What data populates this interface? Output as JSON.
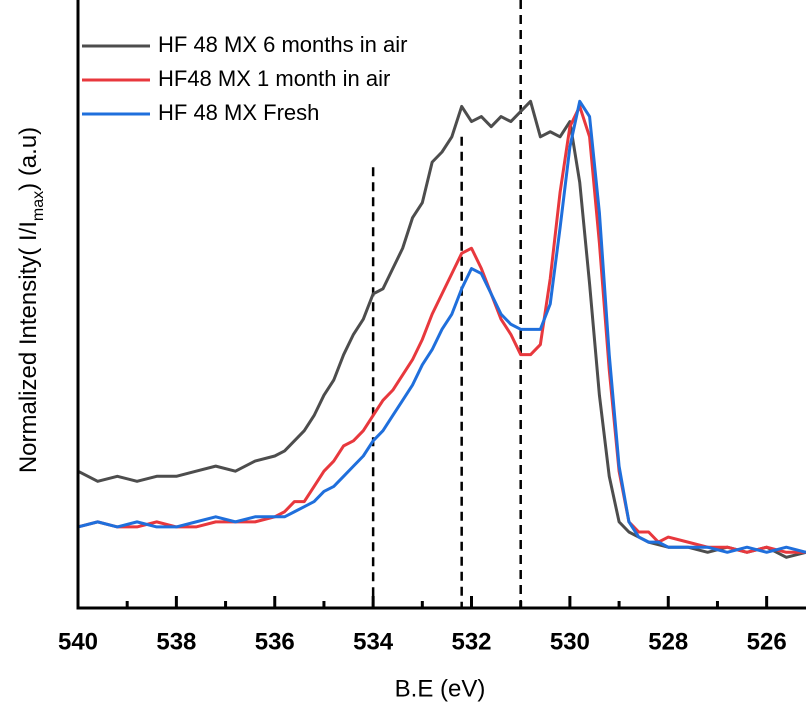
{
  "chart_data": {
    "type": "line",
    "xlabel": "B.E (eV)",
    "ylabel": [
      "Normalized Intensity( I/I",
      "max",
      ") (a.u)"
    ],
    "xlim": [
      540,
      525.2
    ],
    "ylim": [
      0,
      1.2
    ],
    "xticks": [
      540,
      538,
      536,
      534,
      532,
      530,
      528,
      526
    ],
    "xminorticks": [
      539,
      537,
      535,
      533,
      531,
      529,
      527
    ],
    "legend": "upper left",
    "reference_lines": [
      {
        "x": 534,
        "top": 0.87
      },
      {
        "x": 532.2,
        "top": 0.93
      },
      {
        "x": 531,
        "top": 1.2
      }
    ],
    "x": [
      540,
      539.6,
      539.2,
      538.8,
      538.4,
      538,
      537.6,
      537.2,
      536.8,
      536.4,
      536,
      535.8,
      535.6,
      535.4,
      535.2,
      535,
      534.8,
      534.6,
      534.4,
      534.2,
      534,
      533.8,
      533.6,
      533.4,
      533.2,
      533,
      532.8,
      532.6,
      532.4,
      532.2,
      532,
      531.8,
      531.6,
      531.4,
      531.2,
      531,
      530.8,
      530.6,
      530.4,
      530.2,
      530,
      529.8,
      529.6,
      529.4,
      529.2,
      529,
      528.8,
      528.6,
      528.4,
      528.2,
      528,
      527.6,
      527.2,
      526.8,
      526.4,
      526,
      525.6,
      525.2
    ],
    "series": [
      {
        "name": "HF 48 MX 6 months in air",
        "color": "#4d4d4d",
        "values": [
          0.27,
          0.25,
          0.26,
          0.25,
          0.26,
          0.26,
          0.27,
          0.28,
          0.27,
          0.29,
          0.3,
          0.31,
          0.33,
          0.35,
          0.38,
          0.42,
          0.45,
          0.5,
          0.54,
          0.57,
          0.62,
          0.63,
          0.67,
          0.71,
          0.77,
          0.8,
          0.88,
          0.9,
          0.93,
          0.99,
          0.96,
          0.97,
          0.95,
          0.97,
          0.96,
          0.98,
          1.0,
          0.93,
          0.94,
          0.93,
          0.96,
          0.84,
          0.64,
          0.42,
          0.26,
          0.17,
          0.15,
          0.14,
          0.13,
          0.125,
          0.12,
          0.12,
          0.11,
          0.12,
          0.11,
          0.12,
          0.1,
          0.11
        ]
      },
      {
        "name": "HF48 MX 1 month in air",
        "color": "#e8383d",
        "values": [
          0.16,
          0.17,
          0.16,
          0.16,
          0.17,
          0.16,
          0.16,
          0.17,
          0.17,
          0.17,
          0.18,
          0.19,
          0.21,
          0.21,
          0.24,
          0.27,
          0.29,
          0.32,
          0.33,
          0.35,
          0.38,
          0.41,
          0.43,
          0.46,
          0.49,
          0.53,
          0.58,
          0.62,
          0.66,
          0.7,
          0.71,
          0.67,
          0.62,
          0.57,
          0.54,
          0.5,
          0.5,
          0.52,
          0.65,
          0.82,
          0.95,
          0.99,
          0.93,
          0.72,
          0.47,
          0.27,
          0.17,
          0.15,
          0.15,
          0.13,
          0.14,
          0.13,
          0.12,
          0.12,
          0.11,
          0.12,
          0.11,
          0.11
        ]
      },
      {
        "name": "HF 48 MX Fresh",
        "color": "#1f6fdc",
        "values": [
          0.16,
          0.17,
          0.16,
          0.17,
          0.16,
          0.16,
          0.17,
          0.18,
          0.17,
          0.18,
          0.18,
          0.18,
          0.19,
          0.2,
          0.21,
          0.23,
          0.24,
          0.26,
          0.28,
          0.3,
          0.33,
          0.35,
          0.38,
          0.41,
          0.44,
          0.48,
          0.51,
          0.55,
          0.58,
          0.63,
          0.67,
          0.66,
          0.62,
          0.58,
          0.56,
          0.55,
          0.55,
          0.55,
          0.6,
          0.75,
          0.91,
          1.0,
          0.97,
          0.78,
          0.5,
          0.28,
          0.17,
          0.14,
          0.13,
          0.13,
          0.12,
          0.12,
          0.12,
          0.11,
          0.12,
          0.11,
          0.12,
          0.11
        ]
      }
    ]
  }
}
